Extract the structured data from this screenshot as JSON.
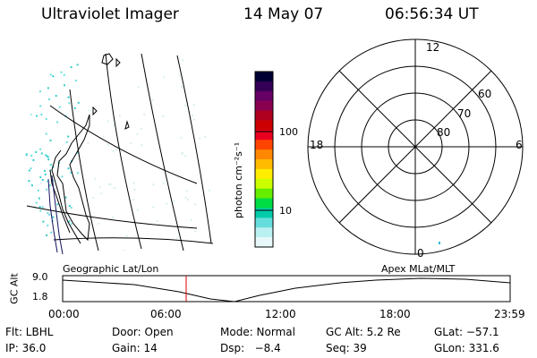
{
  "header": {
    "instrument": "Ultraviolet Imager",
    "date": "14 May 07",
    "time": "06:56:34 UT"
  },
  "colorbar": {
    "label": "photon cm⁻²s⁻¹",
    "ticks": [
      "100",
      "10"
    ],
    "colors": [
      "#000033",
      "#330055",
      "#660066",
      "#8a0050",
      "#b00020",
      "#cc0000",
      "#e8001e",
      "#ff4400",
      "#ff8800",
      "#ffbb00",
      "#ffee00",
      "#ccff00",
      "#66ee00",
      "#00dd44",
      "#00ccaa",
      "#66dddd",
      "#bbf0f0",
      "#e8f8f8"
    ]
  },
  "polar_plot": {
    "mlt_labels": {
      "top": "12",
      "left": "18",
      "right": "6",
      "bottom": "0"
    },
    "lat_labels": [
      "60",
      "70",
      "80"
    ]
  },
  "timeline": {
    "ylabel": "GC Alt",
    "yticks": [
      "9.0",
      "1.8"
    ],
    "left_title": "Geographic Lat/Lon",
    "right_title": "Apex MLat/MLT",
    "xticks": [
      "00:00",
      "06:00",
      "12:00",
      "18:00",
      "23:59"
    ]
  },
  "info": {
    "filter": "Flt: LBHL",
    "door": "Door: Open",
    "mode": "Mode: Normal",
    "gc_alt": "GC Alt: 5.2 Re",
    "glat": "GLat: −57.1",
    "ip": "IP: 36.0",
    "gain": "Gain: 14",
    "dsp": "Dsp:   −8.4",
    "seq": "Seq: 39",
    "glon": "GLon: 331.6"
  },
  "accent": {
    "current_time_marker": "#dd0000"
  }
}
